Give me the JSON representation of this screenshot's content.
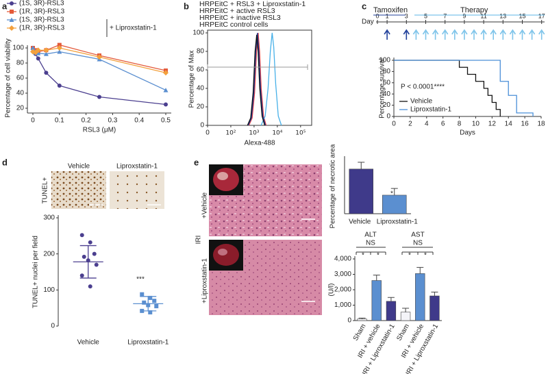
{
  "chart_data": [
    {
      "type": "line",
      "panel": "a",
      "xlabel": "RSL3 (μM)",
      "ylabel": "Percentage of cell viability",
      "x": [
        0,
        0.01,
        0.02,
        0.05,
        0.1,
        0.25,
        0.5
      ],
      "xlim": [
        0,
        0.5
      ],
      "xticks": [
        0,
        0.1,
        0.2,
        0.3,
        0.4,
        0.5
      ],
      "ylim": [
        20,
        100
      ],
      "yticks": [
        20,
        40,
        60,
        80,
        100
      ],
      "legend": "top-left",
      "legend_group_label": "+ Liproxstatin-1",
      "series": [
        {
          "name": "(1S, 3R)-RSL3",
          "color": "#4b3f8f",
          "marker": "circle",
          "values": [
            99,
            92,
            86,
            67,
            50,
            35,
            25
          ]
        },
        {
          "name": "(1R, 3R)-RSL3",
          "color": "#e45a3a",
          "marker": "square",
          "values": [
            100,
            97,
            95,
            97,
            104,
            90,
            70
          ]
        },
        {
          "name": "(1S, 3R)-RSL3",
          "color": "#5b8fd0",
          "marker": "triangle",
          "values": [
            100,
            94,
            93,
            92,
            95,
            85,
            44
          ]
        },
        {
          "name": "(1R, 3R)-RSL3",
          "color": "#f3a03c",
          "marker": "diamond",
          "values": [
            95,
            94,
            97,
            97,
            100,
            88,
            67
          ]
        }
      ]
    },
    {
      "type": "line",
      "panel": "b",
      "xlabel": "Alexa-488",
      "ylabel": "Percentage of Max",
      "xscale": "symlog",
      "xlim": [
        0,
        300000
      ],
      "xticks": [
        0,
        {
          "value": 100,
          "label": "10²"
        },
        {
          "value": 1000,
          "label": "10³"
        },
        {
          "value": 10000,
          "label": "10⁴"
        },
        {
          "value": 100000,
          "label": "10⁵"
        }
      ],
      "ylim": [
        0,
        100
      ],
      "yticks": [
        0,
        20,
        40,
        60,
        80,
        100
      ],
      "legend": "top",
      "series": [
        {
          "name": "HRPEitC + RSL3 + Liproxstatin-1",
          "color": "#ee3b36",
          "x": [
            600,
            825,
            1050,
            1275,
            1500,
            1725,
            2025,
            2550,
            3300
          ],
          "values": [
            0,
            8,
            35,
            80,
            100,
            80,
            40,
            10,
            0
          ]
        },
        {
          "name": "HRPEitC + active RSL3",
          "color": "#46b0e8",
          "x": [
            2000,
            3000,
            4000,
            5000,
            6000,
            7000,
            8500,
            11000,
            15000
          ],
          "values": [
            0,
            10,
            40,
            80,
            100,
            85,
            45,
            10,
            0
          ]
        },
        {
          "name": "HRPEitC + inactive RSL3",
          "color": "#1c3c9c",
          "x": [
            560,
            770,
            980,
            1190,
            1400,
            1610,
            1890,
            2380,
            3080
          ],
          "values": [
            0,
            8,
            35,
            80,
            100,
            80,
            40,
            10,
            0
          ]
        },
        {
          "name": "HRPEitC control cells",
          "color": "#111111",
          "x": [
            520,
            715,
            910,
            1105,
            1300,
            1495,
            1755,
            2210,
            2860
          ],
          "values": [
            0,
            8,
            35,
            80,
            98,
            80,
            40,
            10,
            0
          ]
        }
      ]
    },
    {
      "type": "line",
      "panel": "c",
      "xlabel": "Days",
      "ylabel": "Percentage survival",
      "step": true,
      "xlim": [
        0,
        18
      ],
      "xticks": [
        0,
        2,
        4,
        6,
        8,
        10,
        12,
        14,
        16,
        18
      ],
      "ylim": [
        0,
        100
      ],
      "yticks": [
        0,
        20,
        40,
        60,
        80,
        100
      ],
      "legend": "lower-left",
      "annotations": [
        "P < 0.0001****"
      ],
      "timeline": {
        "label": "Day",
        "ticks": [
          0,
          1,
          3,
          5,
          7,
          9,
          11,
          13,
          15,
          17
        ],
        "phases": [
          "Tamoxifen",
          "Therapy"
        ],
        "tamoxifen_days": [
          1,
          3
        ],
        "therapy_days": [
          4,
          5,
          6,
          7,
          8,
          9,
          10,
          11,
          12,
          13,
          14,
          15,
          16,
          17
        ]
      },
      "series": [
        {
          "name": "Vehicle",
          "color": "#111111",
          "x": [
            0,
            8,
            9,
            10,
            11,
            11.5,
            12,
            12.5,
            13
          ],
          "values": [
            100,
            87.5,
            75,
            62.5,
            50,
            37.5,
            25,
            12.5,
            0
          ]
        },
        {
          "name": "Liproxstatin-1",
          "color": "#4a8fd8",
          "x": [
            0,
            13,
            14,
            15,
            17
          ],
          "values": [
            100,
            62.5,
            37.5,
            6.25,
            0
          ]
        }
      ]
    },
    {
      "type": "dot",
      "panel": "d",
      "ylabel": "TUNEL+ nuclei per field",
      "categories": [
        "Vehicle",
        "Liproxstatin-1"
      ],
      "colors": [
        "#4b3f8f",
        "#5b8fd0"
      ],
      "markers": [
        "circle",
        "square"
      ],
      "points": [
        [
          252,
          232,
          200,
          192,
          182,
          170,
          140,
          110
        ],
        [
          88,
          78,
          70,
          65,
          58,
          55,
          42,
          38
        ]
      ],
      "means": [
        178,
        62
      ],
      "sd": [
        45,
        20
      ],
      "ylim": [
        0,
        300
      ],
      "yticks": [
        0,
        100,
        200,
        300
      ],
      "annotations": [
        "***"
      ],
      "image_labels": [
        "TUNEL+",
        "Vehicle",
        "Liproxstatin-1"
      ]
    },
    {
      "type": "bar",
      "panel": "e",
      "ylabel": "Percentage of necrotic area",
      "categories": [
        "Vehicle",
        "Liproxstatin-1"
      ],
      "values": [
        53,
        22
      ],
      "errors": [
        8,
        8
      ],
      "colors": [
        "#3f3a8a",
        "#5b8fd0"
      ],
      "ylim": [
        0,
        65
      ],
      "annotations": [
        "*"
      ],
      "image_labels": [
        "IRI",
        "+Vehicle",
        "+Liproxstatin-1"
      ]
    },
    {
      "type": "bar",
      "ylabel": "(U/l)",
      "categories": [
        "Sham",
        "IRI + vehicle",
        "IRI + Liproxstatin-1",
        "Sham",
        "IRI + vehicle",
        "IRI + Liproxstatin-1"
      ],
      "values": [
        100,
        2600,
        1250,
        550,
        3050,
        1600
      ],
      "errors": [
        60,
        350,
        250,
        250,
        400,
        250
      ],
      "colors": [
        "#f4f4f8",
        "#5b8fd0",
        "#3f3a8a",
        "#f4f4f8",
        "#5b8fd0",
        "#3f3a8a"
      ],
      "ylim": [
        0,
        4000
      ],
      "yticks": [
        0,
        {
          "value": 1000,
          "label": "1,000"
        },
        {
          "value": 2000,
          "label": "2,000"
        },
        {
          "value": 3000,
          "label": "3,000"
        },
        {
          "value": 4000,
          "label": "4,000"
        }
      ],
      "annotations": [
        "ALT",
        "NS",
        "AST",
        "NS",
        "*",
        "*",
        "*",
        "*"
      ]
    }
  ]
}
